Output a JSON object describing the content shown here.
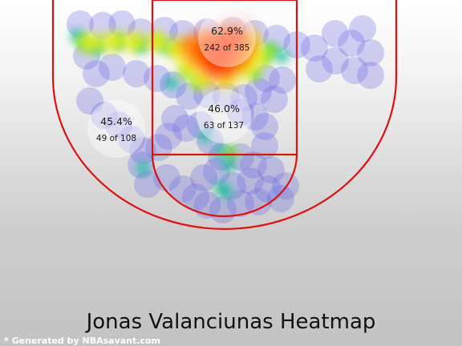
{
  "chart_data": {
    "type": "heatmap",
    "title": "Jonas Valanciunas Heatmap",
    "source_note": "* Generated by NBAsavant.com",
    "colors": {
      "court_lines": "#e01010",
      "heat_low": "#6a6ae6",
      "heat_mid": "#22c0a0",
      "heat_high": "#ff2a00"
    },
    "zones": [
      {
        "zone": "restricted-area",
        "pct": "62.9%",
        "made": 242,
        "att": 385,
        "label": "242 of 385"
      },
      {
        "zone": "paint",
        "pct": "46.0%",
        "made": 63,
        "att": 137,
        "label": "63 of 137"
      },
      {
        "zone": "left-baseline",
        "pct": "45.4%",
        "made": 49,
        "att": 108,
        "label": "49 of 108"
      }
    ]
  }
}
